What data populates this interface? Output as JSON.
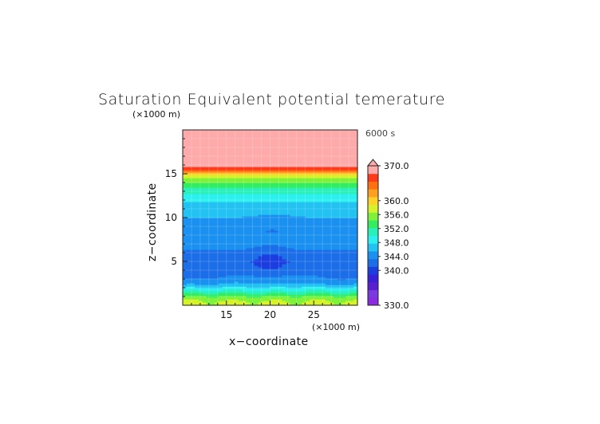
{
  "chart_data": {
    "type": "heatmap",
    "title": "Saturation Equivalent potential temerature",
    "xlabel": "x−coordinate",
    "ylabel": "z−coordinate",
    "x_unit": "(×1000 m)",
    "y_unit": "(×1000 m)",
    "time_label": "6000 s",
    "xlim": [
      10,
      30
    ],
    "ylim": [
      0,
      20
    ],
    "x_ticks": [
      "15",
      "20",
      "25"
    ],
    "y_ticks": [
      "5",
      "10",
      "15"
    ],
    "colorbar": {
      "range": [
        330,
        370
      ],
      "labels": [
        "370.0",
        "360.0",
        "356.0",
        "352.0",
        "348.0",
        "344.0",
        "340.0",
        "330.0"
      ],
      "max_arrow": true
    },
    "profile": [
      {
        "z": 0.0,
        "theta": 359
      },
      {
        "z": 0.3,
        "theta": 359
      },
      {
        "z": 0.9,
        "theta": 357
      },
      {
        "z": 1.6,
        "theta": 352
      },
      {
        "z": 2.4,
        "theta": 347
      },
      {
        "z": 3.0,
        "theta": 345
      },
      {
        "z": 4.0,
        "theta": 343
      },
      {
        "z": 5.0,
        "theta": 342.5
      },
      {
        "z": 6.0,
        "theta": 343.5
      },
      {
        "z": 7.0,
        "theta": 345.5
      },
      {
        "z": 8.5,
        "theta": 345.5
      },
      {
        "z": 10.0,
        "theta": 346.5
      },
      {
        "z": 11.5,
        "theta": 348
      },
      {
        "z": 12.5,
        "theta": 350.5
      },
      {
        "z": 13.5,
        "theta": 354
      },
      {
        "z": 14.3,
        "theta": 357
      },
      {
        "z": 14.8,
        "theta": 360
      },
      {
        "z": 15.3,
        "theta": 366
      },
      {
        "z": 16.0,
        "theta": 372
      },
      {
        "z": 20.0,
        "theta": 373
      }
    ]
  },
  "colors": {
    "palette": [
      "#8a2be2",
      "#7a3ae0",
      "#5a1fd0",
      "#3a20d8",
      "#1c3ee0",
      "#1c6ee8",
      "#1a90f0",
      "#22c2f2",
      "#2cf0f0",
      "#28f0b8",
      "#34ec60",
      "#7ef23a",
      "#d6f22a",
      "#ffd22a",
      "#ffa020",
      "#ff7010",
      "#ff3a1a",
      "#ffaaaa"
    ],
    "pale_top": "#ffaaaa"
  }
}
